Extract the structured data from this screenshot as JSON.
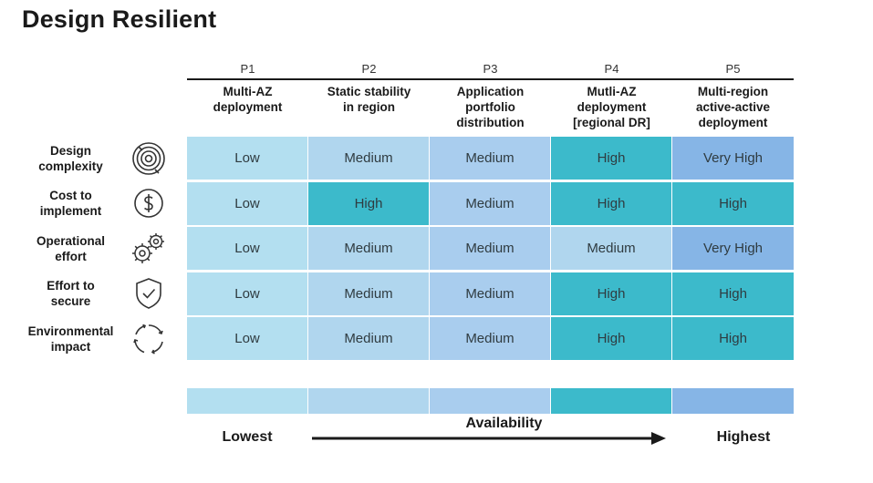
{
  "title": "Design Resilient",
  "columns": [
    {
      "code": "P1",
      "name": "Multi-AZ\ndeployment"
    },
    {
      "code": "P2",
      "name": "Static stability\nin region"
    },
    {
      "code": "P3",
      "name": "Application\nportfolio\ndistribution"
    },
    {
      "code": "P4",
      "name": "Mutli-AZ\ndeployment\n[regional DR]"
    },
    {
      "code": "P5",
      "name": "Multi-region\nactive-active\ndeployment"
    }
  ],
  "rows": [
    {
      "label": "Design\ncomplexity",
      "icon": "target-icon",
      "values": [
        "Low",
        "Medium",
        "Medium",
        "High",
        "Very High"
      ]
    },
    {
      "label": "Cost to\nimplement",
      "icon": "dollar-icon",
      "values": [
        "Low",
        "High",
        "Medium",
        "High",
        "High"
      ]
    },
    {
      "label": "Operational\neffort",
      "icon": "gears-icon",
      "values": [
        "Low",
        "Medium",
        "Medium",
        "Medium",
        "Very High"
      ]
    },
    {
      "label": "Effort to\nsecure",
      "icon": "shield-check-icon",
      "values": [
        "Low",
        "Medium",
        "Medium",
        "High",
        "High"
      ]
    },
    {
      "label": "Environmental\nimpact",
      "icon": "cycle-icon",
      "values": [
        "Low",
        "Medium",
        "Medium",
        "High",
        "High"
      ]
    }
  ],
  "scale": {
    "label": "Availability",
    "low_label": "Lowest",
    "high_label": "Highest",
    "colors": [
      "#b3dff0",
      "#b0d6ee",
      "#a9cdee",
      "#3cbacb",
      "#86b5e6"
    ]
  },
  "level_colors": {
    "Low": "#b3dff0",
    "Medium": "#b0d6ee",
    "High": "#3cbacb",
    "Very High": "#86b5e6"
  }
}
